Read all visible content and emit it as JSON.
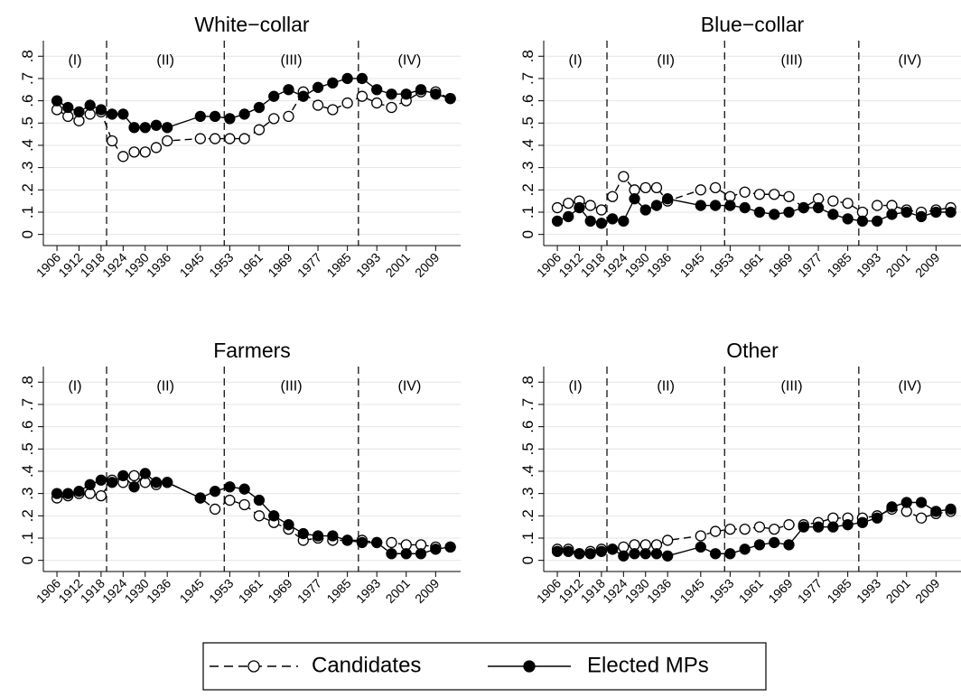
{
  "chart_data": [
    {
      "type": "line",
      "title": "White−collar",
      "x": [
        1906,
        1909,
        1912,
        1915,
        1918,
        1921,
        1924,
        1927,
        1930,
        1933,
        1936,
        1945,
        1949,
        1953,
        1957,
        1961,
        1965,
        1969,
        1973,
        1977,
        1981,
        1985,
        1989,
        1993,
        1997,
        2001,
        2005,
        2009,
        2013
      ],
      "series": [
        {
          "name": "Candidates",
          "color": "#000000",
          "marker": "hollow",
          "dashed": true,
          "values": [
            0.56,
            0.53,
            0.51,
            0.54,
            0.55,
            0.42,
            0.35,
            0.37,
            0.37,
            0.39,
            0.42,
            0.43,
            0.43,
            0.43,
            0.43,
            0.47,
            0.52,
            0.53,
            0.64,
            0.58,
            0.56,
            0.59,
            0.62,
            0.59,
            0.57,
            0.6,
            0.64,
            0.64,
            0.61
          ]
        },
        {
          "name": "Elected MPs",
          "color": "#000000",
          "marker": "filled",
          "dashed": false,
          "values": [
            0.6,
            0.57,
            0.55,
            0.58,
            0.56,
            0.54,
            0.54,
            0.48,
            0.48,
            0.49,
            0.48,
            0.53,
            0.53,
            0.52,
            0.54,
            0.57,
            0.62,
            0.65,
            0.62,
            0.66,
            0.68,
            0.7,
            0.7,
            0.65,
            0.63,
            0.63,
            0.65,
            0.63,
            0.61
          ]
        }
      ],
      "periods": [
        "(I)",
        "(II)",
        "(III)",
        "(IV)"
      ],
      "dividers": [
        1919.5,
        1951.5,
        1988
      ],
      "xlim": [
        1902.3,
        2015.8
      ],
      "xticks": [
        1906,
        1912,
        1918,
        1924,
        1930,
        1936,
        1945,
        1953,
        1961,
        1969,
        1977,
        1985,
        1993,
        2001,
        2009
      ],
      "ylim": [
        -0.05,
        0.87
      ],
      "yticks": [
        0,
        {
          "value": 0.1,
          "label": ".1"
        },
        {
          "value": 0.2,
          "label": ".2"
        },
        {
          "value": 0.3,
          "label": ".3"
        },
        {
          "value": 0.4,
          "label": ".4"
        },
        {
          "value": 0.5,
          "label": ".5"
        },
        {
          "value": 0.6,
          "label": ".6"
        },
        {
          "value": 0.7,
          "label": ".7"
        },
        {
          "value": 0.8,
          "label": ".8"
        }
      ],
      "grid": true
    },
    {
      "type": "line",
      "title": "Blue−collar",
      "x": [
        1906,
        1909,
        1912,
        1915,
        1918,
        1921,
        1924,
        1927,
        1930,
        1933,
        1936,
        1945,
        1949,
        1953,
        1957,
        1961,
        1965,
        1969,
        1973,
        1977,
        1981,
        1985,
        1989,
        1993,
        1997,
        2001,
        2005,
        2009,
        2013
      ],
      "series": [
        {
          "name": "Candidates",
          "color": "#000000",
          "marker": "hollow",
          "dashed": true,
          "values": [
            0.12,
            0.14,
            0.15,
            0.13,
            0.11,
            0.17,
            0.26,
            0.2,
            0.21,
            0.21,
            0.15,
            0.2,
            0.21,
            0.17,
            0.19,
            0.18,
            0.18,
            0.17,
            0.12,
            0.16,
            0.15,
            0.14,
            0.1,
            0.13,
            0.13,
            0.11,
            0.1,
            0.11,
            0.12
          ]
        },
        {
          "name": "Elected MPs",
          "color": "#000000",
          "marker": "filled",
          "dashed": false,
          "values": [
            0.06,
            0.08,
            0.12,
            0.06,
            0.05,
            0.07,
            0.06,
            0.16,
            0.11,
            0.13,
            0.16,
            0.13,
            0.13,
            0.13,
            0.12,
            0.1,
            0.09,
            0.1,
            0.12,
            0.12,
            0.09,
            0.07,
            0.06,
            0.06,
            0.09,
            0.1,
            0.08,
            0.1,
            0.1
          ]
        }
      ],
      "periods": [
        "(I)",
        "(II)",
        "(III)",
        "(IV)"
      ],
      "dividers": [
        1919.5,
        1951.5,
        1988
      ],
      "xlim": [
        1902.3,
        2015.8
      ],
      "xticks": [
        1906,
        1912,
        1918,
        1924,
        1930,
        1936,
        1945,
        1953,
        1961,
        1969,
        1977,
        1985,
        1993,
        2001,
        2009
      ],
      "ylim": [
        -0.05,
        0.87
      ],
      "yticks": [
        0,
        {
          "value": 0.1,
          "label": ".1"
        },
        {
          "value": 0.2,
          "label": ".2"
        },
        {
          "value": 0.3,
          "label": ".3"
        },
        {
          "value": 0.4,
          "label": ".4"
        },
        {
          "value": 0.5,
          "label": ".5"
        },
        {
          "value": 0.6,
          "label": ".6"
        },
        {
          "value": 0.7,
          "label": ".7"
        },
        {
          "value": 0.8,
          "label": ".8"
        }
      ],
      "grid": true
    },
    {
      "type": "line",
      "title": "Farmers",
      "x": [
        1906,
        1909,
        1912,
        1915,
        1918,
        1921,
        1924,
        1927,
        1930,
        1933,
        1936,
        1945,
        1949,
        1953,
        1957,
        1961,
        1965,
        1969,
        1973,
        1977,
        1981,
        1985,
        1989,
        1993,
        1997,
        2001,
        2005,
        2009,
        2013
      ],
      "series": [
        {
          "name": "Candidates",
          "color": "#000000",
          "marker": "hollow",
          "dashed": true,
          "values": [
            0.28,
            0.29,
            0.3,
            0.3,
            0.29,
            0.36,
            0.35,
            0.38,
            0.35,
            0.34,
            0.35,
            0.28,
            0.23,
            0.27,
            0.25,
            0.2,
            0.17,
            0.14,
            0.09,
            0.1,
            0.09,
            0.09,
            0.09,
            0.08,
            0.08,
            0.07,
            0.07,
            0.06,
            0.06
          ]
        },
        {
          "name": "Elected MPs",
          "color": "#000000",
          "marker": "filled",
          "dashed": false,
          "values": [
            0.3,
            0.3,
            0.31,
            0.34,
            0.36,
            0.35,
            0.38,
            0.33,
            0.39,
            0.35,
            0.35,
            0.28,
            0.31,
            0.33,
            0.32,
            0.27,
            0.2,
            0.16,
            0.12,
            0.11,
            0.11,
            0.09,
            0.08,
            0.08,
            0.03,
            0.03,
            0.03,
            0.05,
            0.06
          ]
        }
      ],
      "periods": [
        "(I)",
        "(II)",
        "(III)",
        "(IV)"
      ],
      "dividers": [
        1919.5,
        1951.5,
        1988
      ],
      "xlim": [
        1902.3,
        2015.8
      ],
      "xticks": [
        1906,
        1912,
        1918,
        1924,
        1930,
        1936,
        1945,
        1953,
        1961,
        1969,
        1977,
        1985,
        1993,
        2001,
        2009
      ],
      "ylim": [
        -0.05,
        0.87
      ],
      "yticks": [
        0,
        {
          "value": 0.1,
          "label": ".1"
        },
        {
          "value": 0.2,
          "label": ".2"
        },
        {
          "value": 0.3,
          "label": ".3"
        },
        {
          "value": 0.4,
          "label": ".4"
        },
        {
          "value": 0.5,
          "label": ".5"
        },
        {
          "value": 0.6,
          "label": ".6"
        },
        {
          "value": 0.7,
          "label": ".7"
        },
        {
          "value": 0.8,
          "label": ".8"
        }
      ],
      "grid": true
    },
    {
      "type": "line",
      "title": "Other",
      "x": [
        1906,
        1909,
        1912,
        1915,
        1918,
        1921,
        1924,
        1927,
        1930,
        1933,
        1936,
        1945,
        1949,
        1953,
        1957,
        1961,
        1965,
        1969,
        1973,
        1977,
        1981,
        1985,
        1989,
        1993,
        1997,
        2001,
        2005,
        2009,
        2013
      ],
      "series": [
        {
          "name": "Candidates",
          "color": "#000000",
          "marker": "hollow",
          "dashed": true,
          "values": [
            0.05,
            0.05,
            0.03,
            0.04,
            0.05,
            0.05,
            0.06,
            0.07,
            0.07,
            0.07,
            0.09,
            0.11,
            0.13,
            0.14,
            0.14,
            0.15,
            0.14,
            0.16,
            0.16,
            0.17,
            0.19,
            0.19,
            0.19,
            0.2,
            0.23,
            0.22,
            0.19,
            0.21,
            0.22
          ]
        },
        {
          "name": "Elected MPs",
          "color": "#000000",
          "marker": "filled",
          "dashed": false,
          "values": [
            0.04,
            0.04,
            0.03,
            0.03,
            0.04,
            0.05,
            0.02,
            0.03,
            0.03,
            0.03,
            0.02,
            0.06,
            0.03,
            0.03,
            0.05,
            0.07,
            0.08,
            0.07,
            0.15,
            0.15,
            0.15,
            0.16,
            0.17,
            0.19,
            0.24,
            0.26,
            0.26,
            0.22,
            0.23
          ]
        }
      ],
      "periods": [
        "(I)",
        "(II)",
        "(III)",
        "(IV)"
      ],
      "dividers": [
        1919.5,
        1951.5,
        1988
      ],
      "xlim": [
        1902.3,
        2015.8
      ],
      "xticks": [
        1906,
        1912,
        1918,
        1924,
        1930,
        1936,
        1945,
        1953,
        1961,
        1969,
        1977,
        1985,
        1993,
        2001,
        2009
      ],
      "ylim": [
        -0.05,
        0.87
      ],
      "yticks": [
        0,
        {
          "value": 0.1,
          "label": ".1"
        },
        {
          "value": 0.2,
          "label": ".2"
        },
        {
          "value": 0.3,
          "label": ".3"
        },
        {
          "value": 0.4,
          "label": ".4"
        },
        {
          "value": 0.5,
          "label": ".5"
        },
        {
          "value": 0.6,
          "label": ".6"
        },
        {
          "value": 0.7,
          "label": ".7"
        },
        {
          "value": 0.8,
          "label": ".8"
        }
      ],
      "grid": true
    }
  ]
}
